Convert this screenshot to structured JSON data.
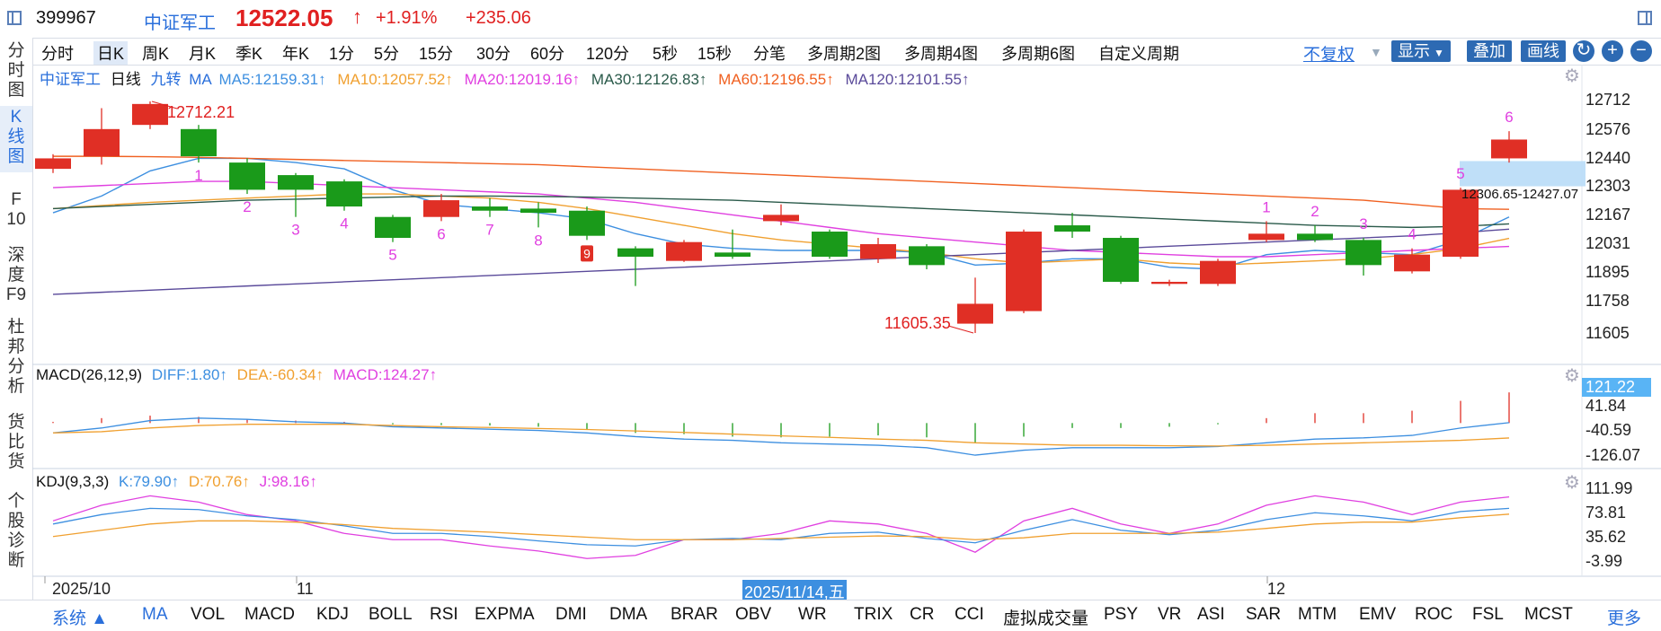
{
  "header": {
    "code": "399967",
    "name": "中证军工",
    "price": "12522.05",
    "arrow": "↑",
    "pct": "+1.91%",
    "change": "+235.06"
  },
  "left_tabs": [
    {
      "label": "分\n时\n图"
    },
    {
      "label": "K\n线\n图"
    },
    {
      "label": "F\n10"
    },
    {
      "label": "深\n度\nF9"
    },
    {
      "label": "杜\n邦\n分\n析"
    },
    {
      "label": "货\n比\n货"
    },
    {
      "label": "个\n股\n诊\n断"
    }
  ],
  "periods": [
    "分时",
    "日K",
    "周K",
    "月K",
    "季K",
    "年K",
    "1分",
    "5分",
    "15分",
    "30分",
    "60分",
    "120分",
    "5秒",
    "15秒",
    "分笔",
    "多周期2图",
    "多周期4图",
    "多周期6图",
    "自定义周期"
  ],
  "toolbar": {
    "fuquan": "不复权",
    "show": "显示",
    "overlay": "叠加",
    "draw": "画线",
    "refresh": "↻",
    "plus": "+",
    "minus": "−"
  },
  "ma_legend": {
    "name": "中证军工",
    "period": "日线",
    "jiuzhuan": "九转",
    "ma": "MA",
    "ma5": "MA5:12159.31↑",
    "ma10": "MA10:12057.52↑",
    "ma20": "MA20:12019.16↑",
    "ma30": "MA30:12126.83↑",
    "ma60": "MA60:12196.55↑",
    "ma120": "MA120:12101.55↑"
  },
  "macd_legend": {
    "name": "MACD(26,12,9)",
    "diff": "DIFF:1.80↑",
    "dea": "DEA:-60.34↑",
    "macd": "MACD:124.27↑"
  },
  "kdj_legend": {
    "name": "KDJ(9,3,3)",
    "k": "K:79.90↑",
    "d": "D:70.76↑",
    "j": "J:98.16↑"
  },
  "price_axis": [
    "12712",
    "12576",
    "12440",
    "12303",
    "12167",
    "12031",
    "11895",
    "11758",
    "11605"
  ],
  "macd_axis": [
    "121.22",
    "41.84",
    "-40.59",
    "-126.07"
  ],
  "kdj_axis": [
    "111.99",
    "73.81",
    "35.62",
    "-3.99"
  ],
  "annotations": {
    "high": "12712.21",
    "low": "11605.35",
    "range": "12306.65-12427.07",
    "nine_marker": "9"
  },
  "date_axis": {
    "d1": "2025/10",
    "d2": "11",
    "d3": "2025/11/14,五",
    "d4": "12"
  },
  "indicators": [
    "系统 ▲",
    "MA",
    "VOL",
    "MACD",
    "KDJ",
    "BOLL",
    "RSI",
    "EXPMA",
    "DMI",
    "DMA",
    "BRAR",
    "OBV",
    "WR",
    "TRIX",
    "CR",
    "CCI",
    "虚拟成交量",
    "PSY",
    "VR",
    "ASI",
    "SAR",
    "MTM",
    "EMV",
    "ROC",
    "FSL",
    "MCST"
  ],
  "more": "更多",
  "chart_data": {
    "type": "candlestick",
    "period": "日线",
    "candles": [
      {
        "o": 12390,
        "c": 12440,
        "h": 12460,
        "l": 12370
      },
      {
        "o": 12450,
        "c": 12580,
        "h": 12680,
        "l": 12410
      },
      {
        "o": 12600,
        "c": 12700,
        "h": 12712.21,
        "l": 12580
      },
      {
        "o": 12580,
        "c": 12450,
        "h": 12600,
        "l": 12420
      },
      {
        "o": 12420,
        "c": 12290,
        "h": 12440,
        "l": 12270
      },
      {
        "o": 12360,
        "c": 12290,
        "h": 12370,
        "l": 12160
      },
      {
        "o": 12330,
        "c": 12210,
        "h": 12340,
        "l": 12190
      },
      {
        "o": 12160,
        "c": 12060,
        "h": 12170,
        "l": 12040
      },
      {
        "o": 12160,
        "c": 12240,
        "h": 12270,
        "l": 12140
      },
      {
        "o": 12210,
        "c": 12190,
        "h": 12250,
        "l": 12160
      },
      {
        "o": 12200,
        "c": 12180,
        "h": 12230,
        "l": 12110
      },
      {
        "o": 12190,
        "c": 12070,
        "h": 12210,
        "l": 12050
      },
      {
        "o": 12010,
        "c": 11970,
        "h": 12020,
        "l": 11830
      },
      {
        "o": 11950,
        "c": 12040,
        "h": 12050,
        "l": 11945
      },
      {
        "o": 11990,
        "c": 11970,
        "h": 12100,
        "l": 11960
      },
      {
        "o": 12140,
        "c": 12170,
        "h": 12220,
        "l": 12120
      },
      {
        "o": 12090,
        "c": 11970,
        "h": 12100,
        "l": 11960
      },
      {
        "o": 11960,
        "c": 12030,
        "h": 12060,
        "l": 11940
      },
      {
        "o": 12020,
        "c": 11930,
        "h": 12030,
        "l": 11910
      },
      {
        "o": 11650,
        "c": 11745,
        "h": 11870,
        "l": 11605.35
      },
      {
        "o": 11710,
        "c": 12090,
        "h": 12100,
        "l": 11700
      },
      {
        "o": 12120,
        "c": 12090,
        "h": 12180,
        "l": 12060
      },
      {
        "o": 12060,
        "c": 11850,
        "h": 12070,
        "l": 11840
      },
      {
        "o": 11840,
        "c": 11850,
        "h": 11860,
        "l": 11830
      },
      {
        "o": 11840,
        "c": 11950,
        "h": 11960,
        "l": 11830
      },
      {
        "o": 12050,
        "c": 12080,
        "h": 12140,
        "l": 12040
      },
      {
        "o": 12080,
        "c": 12050,
        "h": 12120,
        "l": 12040
      },
      {
        "o": 12050,
        "c": 11930,
        "h": 12060,
        "l": 11880
      },
      {
        "o": 11900,
        "c": 11980,
        "h": 12010,
        "l": 11890
      },
      {
        "o": 11970,
        "c": 12290,
        "h": 12300,
        "l": 11960
      },
      {
        "o": 12440,
        "c": 12530,
        "h": 12570,
        "l": 12420
      }
    ],
    "td_sequence": [
      "",
      "",
      "",
      "1",
      "2",
      "3",
      "4",
      "5",
      "6",
      "7",
      "8",
      "9",
      "",
      "",
      "",
      "",
      "",
      "",
      "",
      "",
      "",
      "",
      "",
      "",
      "",
      "1",
      "2",
      "3",
      "4",
      "5",
      "6"
    ],
    "ma_series": [
      {
        "name": "MA5",
        "color": "#3d8fe0",
        "values": [
          12180,
          12260,
          12380,
          12440,
          12440,
          12420,
          12390,
          12290,
          12220,
          12200,
          12180,
          12150,
          12080,
          12030,
          12010,
          12000,
          12000,
          12000,
          11990,
          11930,
          11940,
          11960,
          11960,
          11920,
          11910,
          11980,
          12000,
          11990,
          11980,
          12050,
          12160
        ]
      },
      {
        "name": "MA10",
        "color": "#f0a030",
        "values": [
          12200,
          12215,
          12230,
          12240,
          12250,
          12260,
          12270,
          12270,
          12260,
          12250,
          12230,
          12200,
          12160,
          12120,
          12080,
          12050,
          12030,
          12010,
          11990,
          11960,
          11940,
          11950,
          11960,
          11940,
          11930,
          11940,
          11950,
          11960,
          11980,
          12010,
          12057.52
        ]
      },
      {
        "name": "MA20",
        "color": "#e040e0",
        "values": [
          12300,
          12310,
          12320,
          12330,
          12330,
          12320,
          12310,
          12300,
          12290,
          12280,
          12270,
          12250,
          12230,
          12200,
          12170,
          12140,
          12110,
          12080,
          12060,
          12040,
          12020,
          12000,
          11990,
          11980,
          11970,
          11970,
          11980,
          11990,
          12000,
          12010,
          12019.16
        ]
      },
      {
        "name": "MA30",
        "color": "#2a5a4a",
        "values": [
          12200,
          12210,
          12220,
          12230,
          12240,
          12245,
          12250,
          12255,
          12260,
          12260,
          12258,
          12255,
          12250,
          12245,
          12240,
          12230,
          12220,
          12210,
          12200,
          12190,
          12180,
          12170,
          12160,
          12150,
          12140,
          12130,
          12120,
          12115,
          12110,
          12115,
          12126.83
        ]
      },
      {
        "name": "MA60",
        "color": "#f06020",
        "values": [
          12450,
          12450,
          12448,
          12445,
          12440,
          12435,
          12430,
          12425,
          12420,
          12415,
          12410,
          12400,
          12390,
          12380,
          12370,
          12360,
          12350,
          12340,
          12330,
          12320,
          12310,
          12300,
          12290,
          12280,
          12270,
          12260,
          12250,
          12240,
          12220,
          12200,
          12196.55
        ]
      },
      {
        "name": "MA120",
        "color": "#5a4a9a",
        "values": [
          11790,
          11800,
          11810,
          11820,
          11830,
          11840,
          11850,
          11860,
          11870,
          11880,
          11890,
          11900,
          11910,
          11920,
          11930,
          11940,
          11950,
          11960,
          11970,
          11980,
          11990,
          12000,
          12010,
          12020,
          12030,
          12040,
          12050,
          12060,
          12070,
          12085,
          12101.55
        ]
      }
    ],
    "macd": {
      "diff": [
        -40,
        -20,
        10,
        20,
        15,
        5,
        0,
        -15,
        -20,
        -25,
        -30,
        -40,
        -55,
        -65,
        -70,
        -80,
        -85,
        -90,
        -100,
        -130,
        -110,
        -100,
        -100,
        -100,
        -95,
        -80,
        -65,
        -60,
        -50,
        -20,
        1.8
      ],
      "dea": [
        -40,
        -35,
        -20,
        -10,
        -5,
        -5,
        -5,
        -10,
        -15,
        -18,
        -22,
        -26,
        -32,
        -38,
        -45,
        -52,
        -58,
        -65,
        -70,
        -80,
        -85,
        -90,
        -90,
        -92,
        -93,
        -90,
        -85,
        -80,
        -75,
        -70,
        -60.34
      ],
      "macd": [
        5,
        20,
        30,
        25,
        15,
        10,
        5,
        -5,
        -8,
        -10,
        -15,
        -28,
        -40,
        -45,
        -55,
        -58,
        -55,
        -50,
        -58,
        -80,
        -55,
        -20,
        -20,
        -15,
        -5,
        20,
        40,
        40,
        50,
        90,
        124.27
      ]
    },
    "kdj": {
      "k": [
        55,
        70,
        80,
        78,
        68,
        62,
        52,
        40,
        40,
        35,
        28,
        22,
        20,
        30,
        32,
        30,
        40,
        42,
        32,
        25,
        45,
        62,
        45,
        38,
        45,
        62,
        73,
        68,
        60,
        75,
        79.9
      ],
      "d": [
        35,
        45,
        55,
        60,
        60,
        58,
        54,
        48,
        45,
        42,
        38,
        34,
        30,
        30,
        30,
        32,
        34,
        36,
        35,
        30,
        33,
        40,
        40,
        40,
        42,
        48,
        55,
        58,
        58,
        65,
        70.76
      ],
      "j": [
        60,
        85,
        100,
        90,
        70,
        60,
        40,
        30,
        30,
        20,
        12,
        0,
        5,
        30,
        30,
        40,
        60,
        55,
        40,
        10,
        60,
        80,
        55,
        40,
        55,
        85,
        100,
        90,
        70,
        90,
        98.16
      ]
    }
  }
}
